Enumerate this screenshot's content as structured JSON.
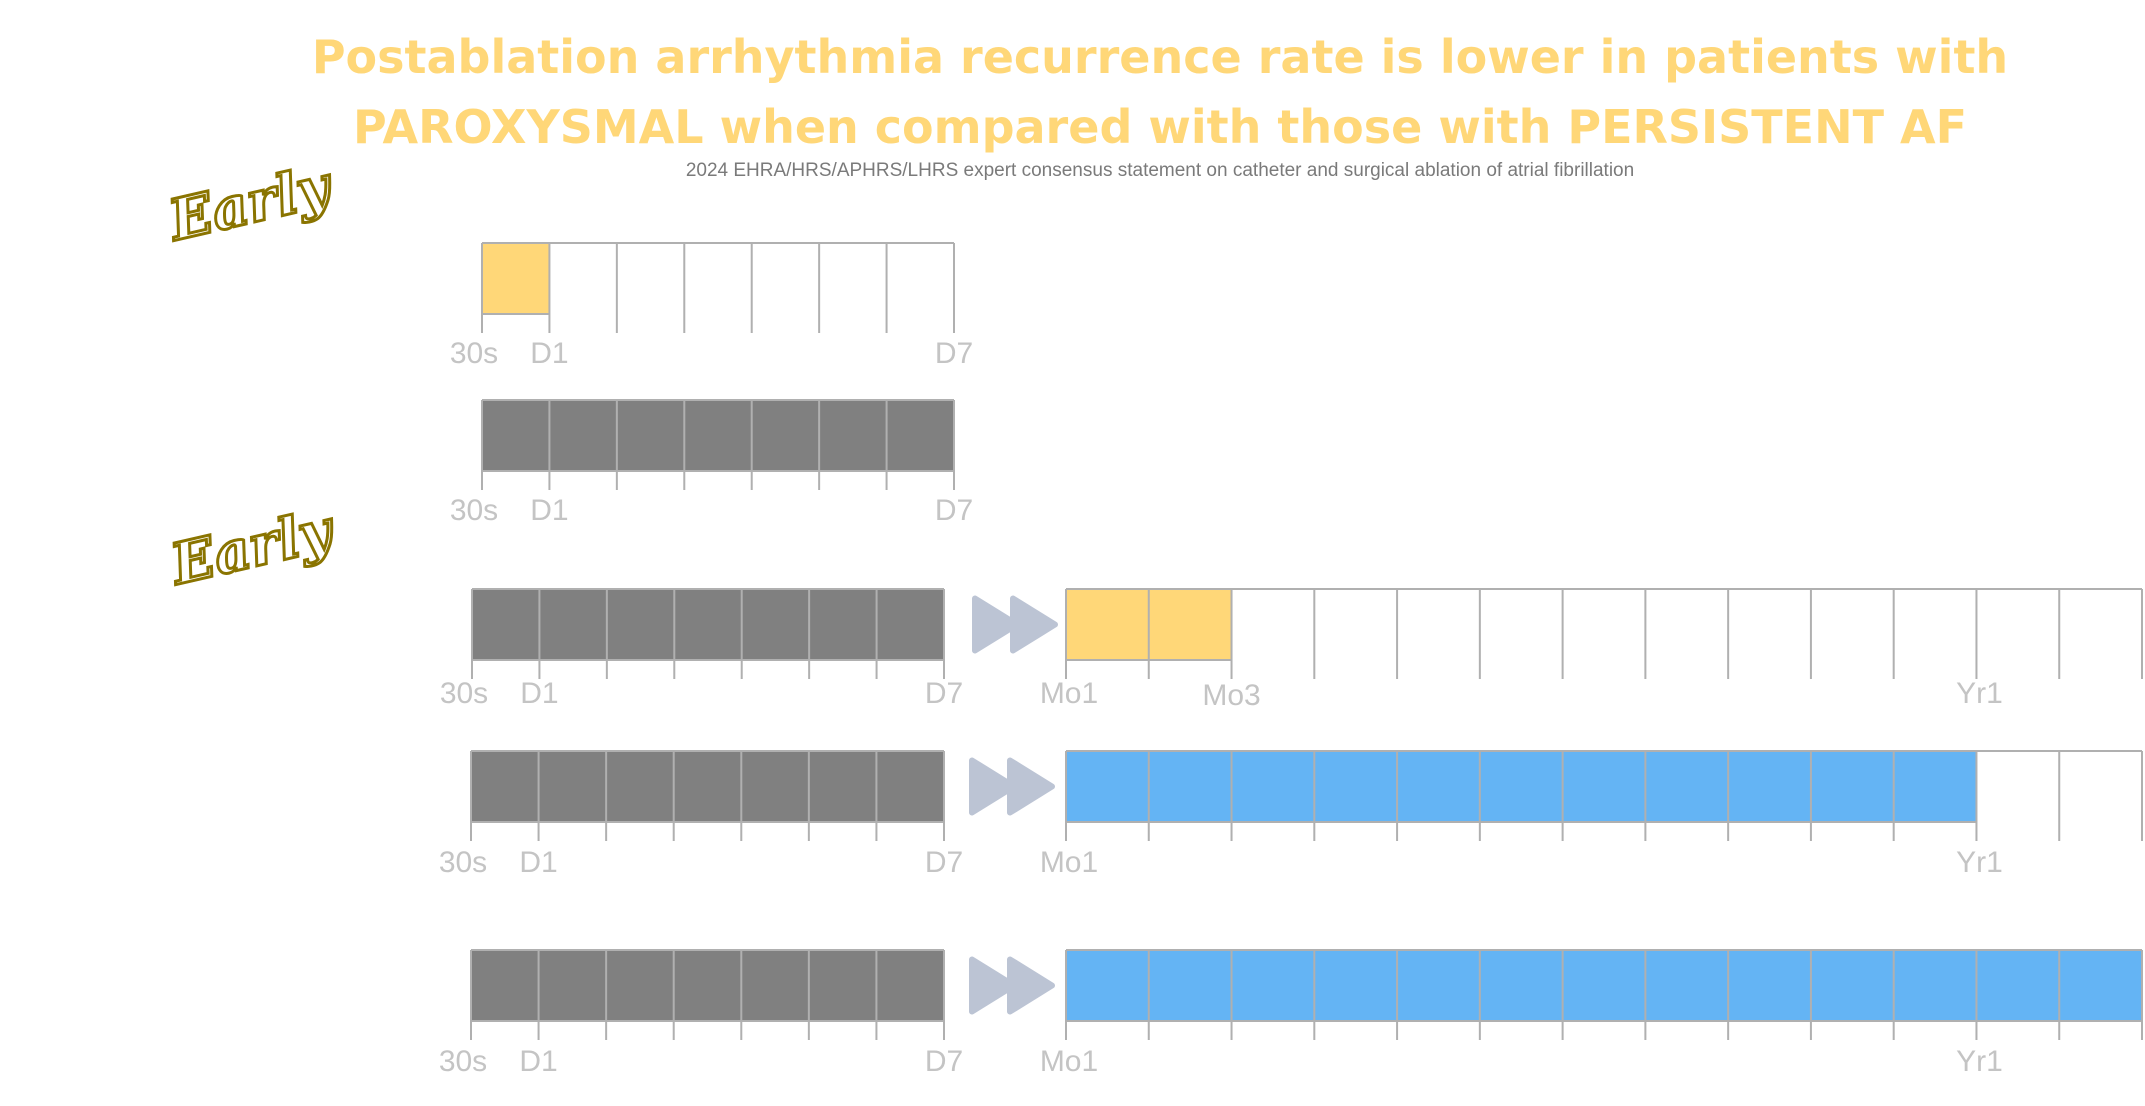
{
  "title": "Postablation arrhythmia recurrence rate is lower in patients with PAROXYSMAL when compared with those with PERSISTENT AF",
  "subtitle": "2024 EHRA/HRS/APHRS/LHRS expert consensus statement on catheter and surgical ablation of atrial fibrillation",
  "section_labels": [
    "Early",
    "Early"
  ],
  "colors": {
    "title": "#ffd778",
    "highlight_yellow": "#ffd778",
    "fill_gray": "#808080",
    "fill_blue": "#64b4f4",
    "grid_line": "#b0b0b0",
    "tick_label": "#c4c4c4",
    "arrow": "#bcc4d4"
  },
  "timelines": [
    {
      "name": "early-timeline-1",
      "days": {
        "cells": 7,
        "filled": 1,
        "fill": "yellow"
      },
      "tick_labels": [
        "30s",
        "D1",
        "D7"
      ]
    },
    {
      "name": "early-timeline-2",
      "days": {
        "cells": 7,
        "filled": 7,
        "fill": "gray"
      },
      "tick_labels": [
        "30s",
        "D1",
        "D7"
      ]
    },
    {
      "name": "late-timeline-1",
      "days": {
        "cells": 7,
        "filled": 7,
        "fill": "gray"
      },
      "months": {
        "cells": 13,
        "filled": 2,
        "fill": "yellow"
      },
      "tick_labels": [
        "30s",
        "D1",
        "D7"
      ],
      "month_tick_labels": [
        "Mo1",
        "Mo3",
        "Yr1"
      ]
    },
    {
      "name": "late-timeline-2",
      "days": {
        "cells": 7,
        "filled": 7,
        "fill": "gray"
      },
      "months": {
        "cells": 13,
        "filled": 11,
        "fill": "blue"
      },
      "tick_labels": [
        "30s",
        "D1",
        "D7"
      ],
      "month_tick_labels": [
        "Mo1",
        "Yr1"
      ]
    },
    {
      "name": "late-timeline-3",
      "days": {
        "cells": 7,
        "filled": 7,
        "fill": "gray"
      },
      "months": {
        "cells": 13,
        "filled": 13,
        "fill": "blue"
      },
      "tick_labels": [
        "30s",
        "D1",
        "D7"
      ],
      "month_tick_labels": [
        "Mo1",
        "Yr1"
      ]
    }
  ]
}
